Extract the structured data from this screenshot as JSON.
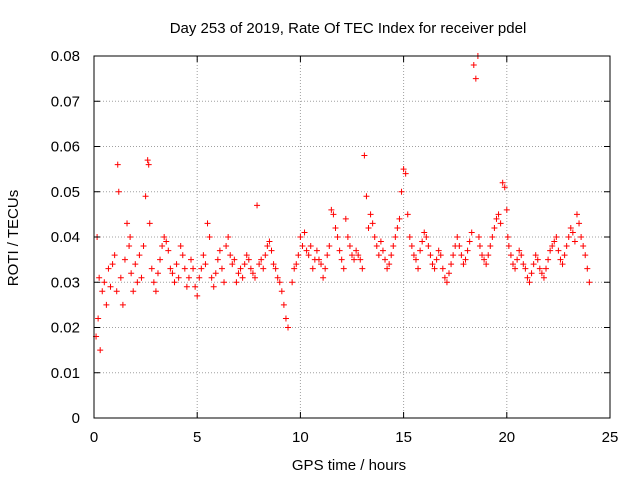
{
  "chart_data": {
    "type": "scatter",
    "title": "Day 253 of 2019, Rate Of TEC Index for receiver pdel",
    "xlabel": "GPS time / hours",
    "ylabel": "ROTI / TECUs",
    "xlim": [
      0,
      25
    ],
    "ylim": [
      0,
      0.08
    ],
    "xticks": [
      0,
      5,
      10,
      15,
      20,
      25
    ],
    "yticks": [
      0,
      0.01,
      0.02,
      0.03,
      0.04,
      0.05,
      0.06,
      0.07,
      0.08
    ],
    "xtick_labels": [
      "0",
      "5",
      "10",
      "15",
      "20",
      "25"
    ],
    "ytick_labels": [
      "0",
      "0.01",
      "0.02",
      "0.03",
      "0.04",
      "0.05",
      "0.06",
      "0.07",
      "0.08"
    ],
    "grid": true,
    "marker": "+",
    "color": "#ff0000",
    "series": [
      {
        "name": "ROTI",
        "x": [
          0.1,
          0.15,
          0.2,
          0.25,
          0.3,
          0.4,
          0.5,
          0.6,
          0.7,
          0.8,
          0.9,
          1.0,
          1.1,
          1.15,
          1.2,
          1.3,
          1.4,
          1.5,
          1.6,
          1.7,
          1.75,
          1.8,
          1.9,
          2.0,
          2.1,
          2.2,
          2.3,
          2.4,
          2.5,
          2.6,
          2.65,
          2.7,
          2.8,
          2.9,
          3.0,
          3.1,
          3.2,
          3.3,
          3.4,
          3.5,
          3.6,
          3.7,
          3.8,
          3.9,
          4.0,
          4.1,
          4.2,
          4.3,
          4.4,
          4.5,
          4.6,
          4.7,
          4.8,
          4.9,
          5.0,
          5.1,
          5.2,
          5.3,
          5.4,
          5.5,
          5.6,
          5.7,
          5.8,
          5.9,
          6.0,
          6.1,
          6.2,
          6.3,
          6.4,
          6.5,
          6.6,
          6.7,
          6.8,
          6.9,
          7.0,
          7.1,
          7.2,
          7.3,
          7.4,
          7.5,
          7.6,
          7.7,
          7.8,
          7.9,
          8.0,
          8.1,
          8.2,
          8.3,
          8.4,
          8.5,
          8.6,
          8.7,
          8.8,
          8.9,
          9.0,
          9.1,
          9.2,
          9.3,
          9.4,
          9.6,
          9.7,
          9.8,
          9.9,
          10.0,
          10.1,
          10.2,
          10.3,
          10.4,
          10.5,
          10.6,
          10.7,
          10.8,
          10.9,
          11.0,
          11.1,
          11.2,
          11.3,
          11.4,
          11.5,
          11.6,
          11.7,
          11.8,
          11.9,
          12.0,
          12.1,
          12.2,
          12.3,
          12.4,
          12.5,
          12.6,
          12.7,
          12.8,
          12.9,
          13.0,
          13.1,
          13.2,
          13.3,
          13.4,
          13.5,
          13.6,
          13.7,
          13.8,
          13.9,
          14.0,
          14.1,
          14.2,
          14.3,
          14.4,
          14.5,
          14.6,
          14.7,
          14.8,
          14.9,
          15.0,
          15.1,
          15.2,
          15.3,
          15.4,
          15.5,
          15.6,
          15.7,
          15.8,
          15.9,
          16.0,
          16.1,
          16.2,
          16.3,
          16.4,
          16.5,
          16.6,
          16.7,
          16.8,
          16.9,
          17.0,
          17.1,
          17.2,
          17.3,
          17.4,
          17.5,
          17.6,
          17.7,
          17.8,
          17.9,
          18.0,
          18.1,
          18.2,
          18.3,
          18.4,
          18.5,
          18.6,
          18.65,
          18.7,
          18.8,
          18.9,
          19.0,
          19.1,
          19.2,
          19.3,
          19.4,
          19.5,
          19.6,
          19.7,
          19.8,
          19.9,
          20.0,
          20.05,
          20.1,
          20.2,
          20.3,
          20.4,
          20.5,
          20.6,
          20.7,
          20.8,
          20.9,
          21.0,
          21.1,
          21.2,
          21.3,
          21.4,
          21.5,
          21.6,
          21.7,
          21.8,
          21.9,
          22.0,
          22.1,
          22.2,
          22.3,
          22.4,
          22.5,
          22.6,
          22.7,
          22.8,
          22.9,
          23.0,
          23.1,
          23.2,
          23.3,
          23.4,
          23.5,
          23.6,
          23.7,
          23.8,
          23.9,
          24.0
        ],
        "y": [
          0.018,
          0.04,
          0.022,
          0.031,
          0.015,
          0.028,
          0.03,
          0.025,
          0.033,
          0.029,
          0.034,
          0.036,
          0.028,
          0.056,
          0.05,
          0.031,
          0.025,
          0.035,
          0.043,
          0.038,
          0.04,
          0.032,
          0.028,
          0.034,
          0.03,
          0.036,
          0.031,
          0.038,
          0.049,
          0.057,
          0.056,
          0.043,
          0.033,
          0.03,
          0.028,
          0.032,
          0.035,
          0.038,
          0.04,
          0.039,
          0.037,
          0.033,
          0.032,
          0.03,
          0.034,
          0.031,
          0.038,
          0.036,
          0.033,
          0.029,
          0.031,
          0.035,
          0.033,
          0.029,
          0.027,
          0.031,
          0.033,
          0.036,
          0.034,
          0.043,
          0.04,
          0.031,
          0.029,
          0.032,
          0.035,
          0.037,
          0.033,
          0.03,
          0.038,
          0.04,
          0.036,
          0.034,
          0.035,
          0.03,
          0.032,
          0.033,
          0.031,
          0.034,
          0.036,
          0.035,
          0.033,
          0.032,
          0.031,
          0.047,
          0.034,
          0.035,
          0.033,
          0.036,
          0.038,
          0.039,
          0.037,
          0.034,
          0.033,
          0.031,
          0.03,
          0.028,
          0.025,
          0.022,
          0.02,
          0.03,
          0.033,
          0.034,
          0.036,
          0.04,
          0.038,
          0.041,
          0.037,
          0.036,
          0.038,
          0.033,
          0.035,
          0.037,
          0.035,
          0.034,
          0.031,
          0.033,
          0.036,
          0.038,
          0.046,
          0.045,
          0.042,
          0.04,
          0.037,
          0.035,
          0.033,
          0.044,
          0.04,
          0.038,
          0.036,
          0.035,
          0.037,
          0.036,
          0.035,
          0.033,
          0.058,
          0.049,
          0.042,
          0.045,
          0.043,
          0.04,
          0.038,
          0.036,
          0.039,
          0.037,
          0.035,
          0.033,
          0.034,
          0.036,
          0.038,
          0.04,
          0.042,
          0.044,
          0.05,
          0.055,
          0.054,
          0.045,
          0.04,
          0.038,
          0.036,
          0.035,
          0.033,
          0.037,
          0.039,
          0.041,
          0.04,
          0.038,
          0.036,
          0.034,
          0.033,
          0.035,
          0.037,
          0.036,
          0.033,
          0.031,
          0.03,
          0.032,
          0.034,
          0.036,
          0.038,
          0.04,
          0.038,
          0.036,
          0.034,
          0.035,
          0.037,
          0.039,
          0.041,
          0.078,
          0.075,
          0.08,
          0.04,
          0.038,
          0.036,
          0.035,
          0.034,
          0.036,
          0.038,
          0.04,
          0.042,
          0.044,
          0.045,
          0.043,
          0.052,
          0.051,
          0.046,
          0.04,
          0.038,
          0.036,
          0.034,
          0.033,
          0.035,
          0.037,
          0.036,
          0.034,
          0.033,
          0.031,
          0.03,
          0.032,
          0.034,
          0.036,
          0.035,
          0.033,
          0.032,
          0.031,
          0.033,
          0.035,
          0.037,
          0.038,
          0.039,
          0.04,
          0.037,
          0.035,
          0.034,
          0.036,
          0.038,
          0.04,
          0.042,
          0.041,
          0.039,
          0.045,
          0.043,
          0.04,
          0.038,
          0.036,
          0.033,
          0.03
        ]
      }
    ]
  }
}
